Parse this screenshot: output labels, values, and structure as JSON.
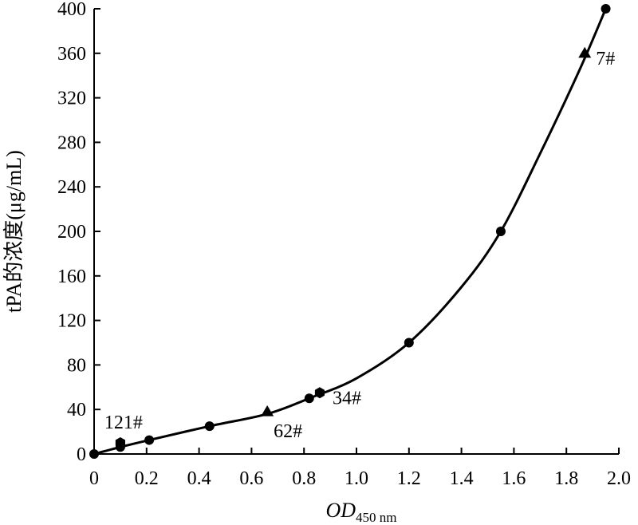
{
  "chart_data": {
    "type": "scatter",
    "title": "",
    "xlabel": {
      "main": "OD",
      "sub": "450 nm"
    },
    "ylabel": "tPA的浓度(μg/mL)",
    "xlim": [
      0,
      2.0
    ],
    "ylim": [
      0,
      400
    ],
    "xticks": [
      "0",
      "0.2",
      "0.4",
      "0.6",
      "0.8",
      "1.0",
      "1.2",
      "1.4",
      "1.6",
      "1.8",
      "2.0"
    ],
    "xtick_values": [
      0,
      0.2,
      0.4,
      0.6,
      0.8,
      1.0,
      1.2,
      1.4,
      1.6,
      1.8,
      2.0
    ],
    "yticks": [
      "0",
      "40",
      "80",
      "120",
      "160",
      "200",
      "240",
      "280",
      "320",
      "360",
      "400"
    ],
    "ytick_values": [
      0,
      40,
      80,
      120,
      160,
      200,
      240,
      280,
      320,
      360,
      400
    ],
    "grid": false,
    "series": [
      {
        "marker": "circle",
        "points": [
          {
            "x": 0,
            "y": 0
          },
          {
            "x": 0.1,
            "y": 6.25
          },
          {
            "x": 0.21,
            "y": 12.5
          },
          {
            "x": 0.44,
            "y": 25
          },
          {
            "x": 0.82,
            "y": 50
          },
          {
            "x": 1.2,
            "y": 100
          },
          {
            "x": 1.55,
            "y": 200
          },
          {
            "x": 1.95,
            "y": 400
          }
        ]
      },
      {
        "marker": "triangle",
        "points": [
          {
            "x": 0.66,
            "y": 38,
            "label": "62#"
          },
          {
            "x": 1.87,
            "y": 360,
            "label": "7#"
          }
        ]
      },
      {
        "marker": "hexagon",
        "points": [
          {
            "x": 0.1,
            "y": 10,
            "label": "121#"
          },
          {
            "x": 0.86,
            "y": 55,
            "label": "34#"
          }
        ]
      }
    ],
    "fit_curve": [
      [
        0,
        0
      ],
      [
        0.1,
        6.25
      ],
      [
        0.21,
        12.5
      ],
      [
        0.44,
        25
      ],
      [
        0.66,
        36
      ],
      [
        0.82,
        50
      ],
      [
        1.0,
        68
      ],
      [
        1.2,
        100
      ],
      [
        1.4,
        150
      ],
      [
        1.55,
        200
      ],
      [
        1.7,
        270
      ],
      [
        1.85,
        345
      ],
      [
        1.95,
        400
      ]
    ]
  }
}
